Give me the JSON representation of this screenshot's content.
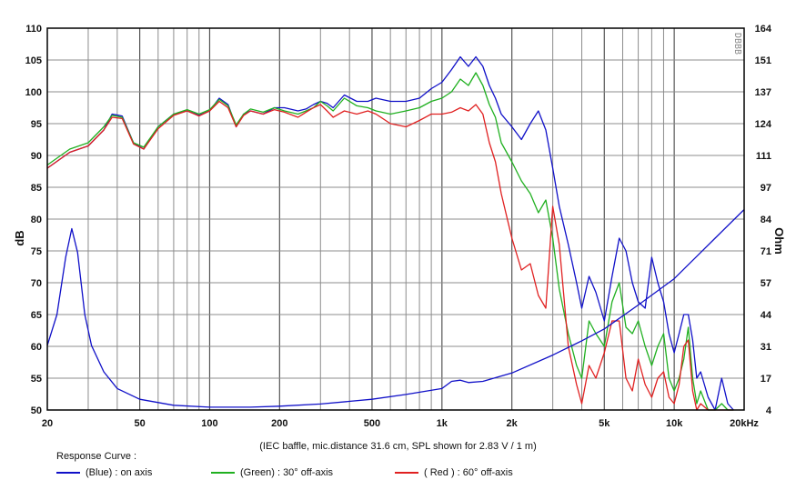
{
  "chart_data": {
    "type": "line",
    "xscale": "log",
    "xlim": [
      20,
      20000
    ],
    "ylim_left": [
      50,
      110
    ],
    "ylim_right": [
      4,
      164
    ],
    "ylabel": "dB",
    "y2label": "Ohm",
    "watermark": "DBBB",
    "x_ticks": [
      {
        "value": 20,
        "label": "20"
      },
      {
        "value": 50,
        "label": "50"
      },
      {
        "value": 100,
        "label": "100"
      },
      {
        "value": 200,
        "label": "200"
      },
      {
        "value": 500,
        "label": "500"
      },
      {
        "value": 1000,
        "label": "1k"
      },
      {
        "value": 2000,
        "label": "2k"
      },
      {
        "value": 5000,
        "label": "5k"
      },
      {
        "value": 10000,
        "label": "10k"
      },
      {
        "value": 20000,
        "label": "20kHz"
      }
    ],
    "y_ticks_left": [
      "110",
      "105",
      "100",
      "95",
      "90",
      "85",
      "80",
      "75",
      "70",
      "65",
      "60",
      "55",
      "50"
    ],
    "y_ticks_right": [
      "164",
      "151",
      "137",
      "124",
      "111",
      "97",
      "84",
      "71",
      "57",
      "44",
      "31",
      "17",
      "4"
    ],
    "caption": "(IEC baffle, mic.distance 31.6 cm, SPL shown for 2.83 V / 1 m)",
    "legend_title": "Response Curve :",
    "series": [
      {
        "name": "(Blue)  : on axis",
        "color": "#1010c8",
        "x": [
          20,
          25,
          30,
          35,
          38,
          42,
          47,
          52,
          60,
          70,
          80,
          90,
          100,
          110,
          120,
          130,
          140,
          150,
          170,
          190,
          210,
          240,
          260,
          280,
          300,
          320,
          340,
          380,
          430,
          480,
          520,
          600,
          700,
          800,
          900,
          1000,
          1100,
          1200,
          1300,
          1400,
          1500,
          1600,
          1700,
          1800,
          2000,
          2200,
          2400,
          2600,
          2800,
          3000,
          3200,
          3500,
          3800,
          4000,
          4300,
          4600,
          5000,
          5400,
          5800,
          6200,
          6600,
          7000,
          7500,
          8000,
          8500,
          9000,
          9500,
          10000,
          10500,
          11000,
          11500,
          12000,
          12500,
          13000,
          14000,
          15000,
          16000,
          17000,
          18000
        ],
        "y": [
          88,
          90.5,
          91.5,
          94,
          96.5,
          96.2,
          92,
          91,
          94.5,
          96.5,
          97,
          96.3,
          97,
          99,
          98,
          94.5,
          96.5,
          97,
          96.5,
          97.5,
          97.5,
          97,
          97.3,
          98,
          98.5,
          98.2,
          97.5,
          99.5,
          98.5,
          98.5,
          99,
          98.5,
          98.5,
          99,
          100.5,
          101.5,
          103.5,
          105.5,
          104,
          105.5,
          104,
          101,
          99,
          96.5,
          94.5,
          92.5,
          95,
          97,
          94,
          88,
          82,
          76,
          70,
          66,
          71,
          68.5,
          64,
          71,
          77,
          75,
          70,
          67,
          66,
          74,
          70,
          67,
          62,
          59,
          62,
          65,
          65,
          61,
          55,
          56,
          52,
          50,
          55,
          51,
          50
        ]
      },
      {
        "name": "(Green) : 30° off-axis",
        "color": "#20b020",
        "x": [
          20,
          25,
          30,
          35,
          38,
          42,
          47,
          52,
          60,
          70,
          80,
          90,
          100,
          110,
          120,
          130,
          140,
          150,
          170,
          190,
          210,
          240,
          260,
          280,
          300,
          320,
          340,
          380,
          430,
          480,
          520,
          600,
          700,
          800,
          900,
          1000,
          1100,
          1200,
          1300,
          1400,
          1500,
          1600,
          1700,
          1800,
          2000,
          2200,
          2400,
          2600,
          2800,
          3000,
          3200,
          3500,
          3800,
          4000,
          4300,
          4600,
          5000,
          5400,
          5800,
          6200,
          6600,
          7000,
          7500,
          8000,
          8500,
          9000,
          9500,
          10000,
          10500,
          11000,
          11500,
          12000,
          12500,
          13000,
          14000,
          15000,
          16000,
          17000,
          18000
        ],
        "y": [
          88.5,
          91,
          92,
          94.5,
          96.3,
          96,
          92,
          91.3,
          94.5,
          96.5,
          97.2,
          96.5,
          97.2,
          98.8,
          97.8,
          94.8,
          96.5,
          97.3,
          96.8,
          97.5,
          97,
          96.5,
          97,
          97.5,
          98.5,
          97.8,
          97,
          99,
          97.8,
          97.5,
          97,
          96.5,
          97,
          97.5,
          98.5,
          99,
          100,
          102,
          101,
          103,
          101,
          98,
          96,
          92,
          89,
          86,
          84,
          81,
          83,
          77,
          69,
          62,
          57,
          55,
          64,
          62,
          60,
          67,
          70,
          63,
          62,
          64,
          60,
          57,
          60,
          62,
          55,
          53,
          55,
          58,
          63,
          55,
          51,
          53,
          50,
          50,
          51,
          50,
          50
        ]
      },
      {
        "name": "( Red ) : 60° off-axis",
        "color": "#e02020",
        "x": [
          20,
          25,
          30,
          35,
          38,
          42,
          47,
          52,
          60,
          70,
          80,
          90,
          100,
          110,
          120,
          130,
          140,
          150,
          170,
          190,
          210,
          240,
          260,
          280,
          300,
          320,
          340,
          380,
          430,
          480,
          520,
          600,
          700,
          800,
          900,
          1000,
          1100,
          1200,
          1300,
          1400,
          1500,
          1600,
          1700,
          1800,
          2000,
          2200,
          2400,
          2600,
          2800,
          3000,
          3200,
          3500,
          3800,
          4000,
          4300,
          4600,
          5000,
          5400,
          5800,
          6200,
          6600,
          7000,
          7500,
          8000,
          8500,
          9000,
          9500,
          10000,
          10500,
          11000,
          11500,
          12000,
          12500,
          13000,
          14000,
          15000,
          16000,
          17000,
          18000
        ],
        "y": [
          88,
          90.5,
          91.5,
          94,
          96,
          95.8,
          91.8,
          91,
          94.2,
          96.3,
          97,
          96.2,
          97,
          98.5,
          97.5,
          94.5,
          96.3,
          97,
          96.5,
          97.2,
          96.8,
          96,
          96.8,
          97.5,
          98,
          97,
          96,
          97,
          96.5,
          97,
          96.5,
          95,
          94.5,
          95.5,
          96.5,
          96.5,
          96.8,
          97.5,
          97,
          98,
          96.5,
          92,
          89,
          84,
          77,
          72,
          73,
          68,
          66,
          82,
          76,
          60,
          54,
          51,
          57,
          55,
          59,
          64,
          64,
          55,
          53,
          58,
          54,
          52,
          55,
          56,
          52,
          51,
          54,
          60,
          61,
          53,
          50,
          51,
          50,
          50,
          50,
          50,
          50
        ]
      },
      {
        "name": "impedance",
        "color": "#1010c8",
        "axis": "right",
        "x": [
          20,
          22,
          24,
          25.5,
          27,
          29,
          31,
          35,
          40,
          50,
          70,
          100,
          150,
          200,
          300,
          500,
          700,
          1000,
          1100,
          1200,
          1300,
          1500,
          2000,
          3000,
          4000,
          5000,
          7000,
          10000,
          15000,
          20000
        ],
        "y": [
          31,
          44,
          68,
          80,
          70,
          44,
          31,
          20,
          13,
          8.5,
          6,
          5.2,
          5.2,
          5.6,
          6.5,
          8.5,
          10.5,
          13,
          16,
          16.5,
          15.5,
          16,
          19.5,
          27,
          33,
          38,
          48,
          59,
          76,
          88
        ]
      }
    ]
  }
}
